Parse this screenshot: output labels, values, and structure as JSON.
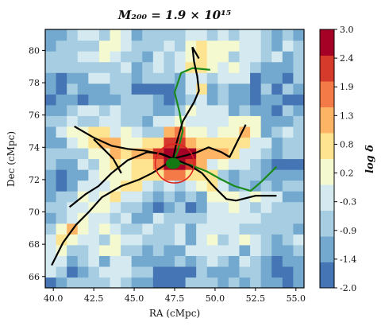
{
  "chart_data": {
    "type": "heatmap",
    "title": "M₂₀₀ = 1.9 × 10¹⁵",
    "xlabel": "RA (cMpc)",
    "ylabel": "Dec (cMpc)",
    "xlim": [
      39.5,
      55.5
    ],
    "ylim": [
      65.3,
      81.3
    ],
    "x_ticks": [
      "40.0",
      "42.5",
      "45.0",
      "47.5",
      "50.0",
      "52.5",
      "55.0"
    ],
    "y_ticks": [
      "66",
      "68",
      "70",
      "72",
      "74",
      "76",
      "78",
      "80"
    ],
    "colorbar": {
      "label": "log δ",
      "range": [
        -2.0,
        3.0
      ],
      "ticks": [
        "3.0",
        "2.4",
        "1.9",
        "1.3",
        "0.8",
        "0.2",
        "-0.3",
        "-0.9",
        "-1.4",
        "-2.0"
      ],
      "colors": [
        "#4575b4",
        "#74a9cf",
        "#a6cde2",
        "#d4eaf0",
        "#f4f9cf",
        "#fee390",
        "#fdb565",
        "#f47a48",
        "#d63a2b",
        "#a50026"
      ],
      "scale": "diverging RdYlBu_r"
    },
    "grid": {
      "nx": 24,
      "ny": 24,
      "center_ra": 47.5,
      "center_dec": 73.3,
      "overdensity_peak_log_delta": 3.0,
      "background_range_log_delta": [
        -2.0,
        0.2
      ]
    },
    "circle": {
      "ra": 47.5,
      "dec": 73.0,
      "radius": 1.2,
      "color": "#dd2222"
    },
    "cluster_core": {
      "ra": 47.4,
      "dec": 73.0,
      "color": "#137a13"
    },
    "filaments_black": [
      [
        [
          39.9,
          66.7
        ],
        [
          40.6,
          68.1
        ],
        [
          41.4,
          69.2
        ],
        [
          42.2,
          70.0
        ],
        [
          43.0,
          70.9
        ],
        [
          44.2,
          71.6
        ],
        [
          45.3,
          72.0
        ],
        [
          46.1,
          72.4
        ],
        [
          46.9,
          72.9
        ],
        [
          47.4,
          73.3
        ]
      ],
      [
        [
          41.0,
          70.3
        ],
        [
          42.0,
          71.1
        ],
        [
          42.8,
          71.6
        ],
        [
          43.6,
          72.4
        ],
        [
          44.6,
          73.2
        ],
        [
          45.8,
          73.7
        ],
        [
          46.7,
          73.6
        ],
        [
          47.4,
          73.3
        ]
      ],
      [
        [
          41.3,
          75.3
        ],
        [
          42.5,
          74.6
        ],
        [
          43.6,
          74.1
        ],
        [
          44.6,
          73.9
        ],
        [
          45.6,
          73.8
        ],
        [
          46.6,
          73.6
        ],
        [
          47.4,
          73.3
        ]
      ],
      [
        [
          42.5,
          74.5
        ],
        [
          43.2,
          73.8
        ],
        [
          43.7,
          73.3
        ],
        [
          44.2,
          72.4
        ]
      ],
      [
        [
          47.4,
          73.3
        ],
        [
          47.6,
          74.2
        ],
        [
          48.0,
          75.6
        ],
        [
          48.7,
          76.8
        ],
        [
          49.0,
          77.5
        ],
        [
          48.9,
          78.4
        ],
        [
          48.7,
          79.3
        ],
        [
          48.6,
          80.2
        ]
      ],
      [
        [
          47.4,
          73.3
        ],
        [
          48.2,
          73.5
        ],
        [
          48.9,
          73.7
        ],
        [
          49.6,
          74.0
        ],
        [
          50.4,
          73.7
        ],
        [
          50.9,
          73.4
        ],
        [
          51.3,
          74.2
        ],
        [
          51.9,
          75.4
        ]
      ],
      [
        [
          47.4,
          73.3
        ],
        [
          48.4,
          72.9
        ],
        [
          49.2,
          72.4
        ],
        [
          49.8,
          71.7
        ],
        [
          50.3,
          71.2
        ],
        [
          50.7,
          70.8
        ],
        [
          51.3,
          70.7
        ]
      ],
      [
        [
          51.3,
          70.7
        ],
        [
          52.5,
          71.0
        ],
        [
          53.8,
          71.0
        ]
      ],
      [
        [
          48.6,
          80.2
        ],
        [
          49.0,
          79.5
        ]
      ]
    ],
    "filaments_green": [
      [
        [
          47.4,
          73.1
        ],
        [
          47.7,
          73.8
        ],
        [
          48.0,
          75.0
        ],
        [
          47.8,
          76.2
        ],
        [
          47.5,
          77.4
        ],
        [
          47.9,
          78.6
        ],
        [
          48.6,
          78.9
        ],
        [
          49.7,
          78.8
        ]
      ],
      [
        [
          47.4,
          73.1
        ],
        [
          48.5,
          72.9
        ],
        [
          49.5,
          72.5
        ],
        [
          50.4,
          72.0
        ],
        [
          51.2,
          71.6
        ],
        [
          52.2,
          71.3
        ],
        [
          52.9,
          71.9
        ],
        [
          53.8,
          72.8
        ]
      ]
    ]
  }
}
